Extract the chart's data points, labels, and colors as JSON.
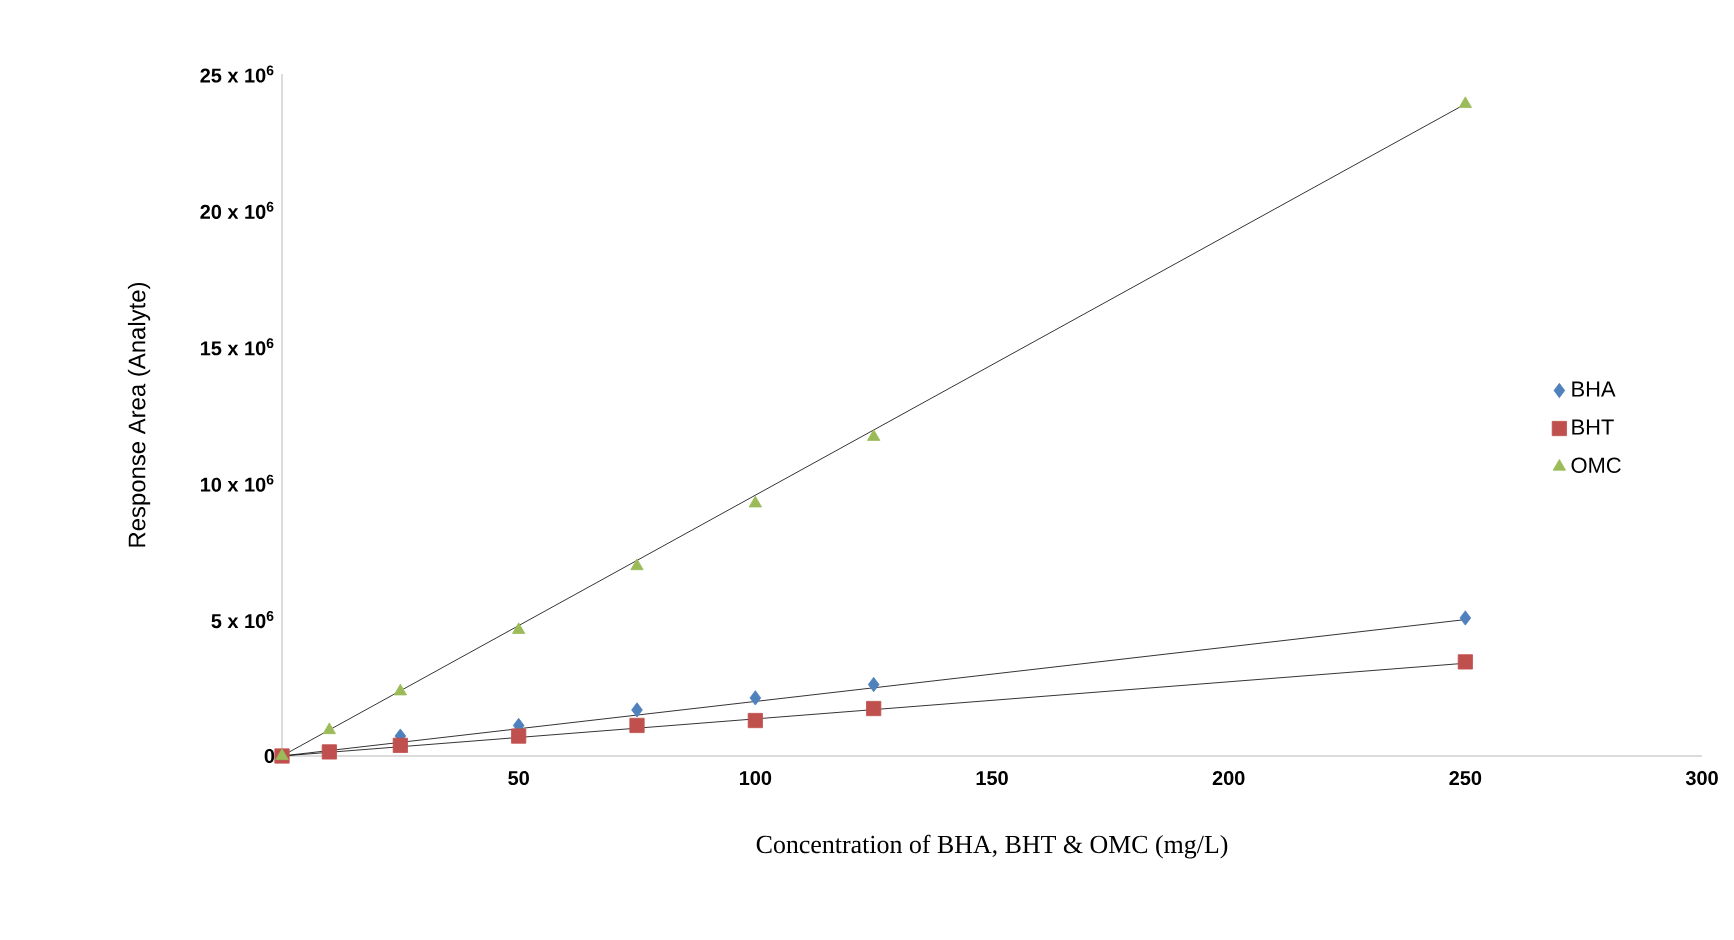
{
  "chart_data": {
    "type": "scatter",
    "xlabel": "Concentration of BHA, BHT & OMC (mg/L)",
    "ylabel": "Response Area (Analyte)",
    "xlim": [
      0,
      300
    ],
    "xticks": [
      {
        "value": 0,
        "label": null
      },
      50,
      100,
      150,
      200,
      250,
      300
    ],
    "ylim": [
      0,
      25000000
    ],
    "yticks": [
      {
        "value": 0,
        "label": "0"
      },
      {
        "value": 5000000,
        "label": "5 x 10$^{6}$"
      },
      {
        "value": 10000000,
        "label": "10 x 10$^{6}$"
      },
      {
        "value": 15000000,
        "label": "15 x 10$^{6}$"
      },
      {
        "value": 20000000,
        "label": "20 x 10$^{6}$"
      },
      {
        "value": 25000000,
        "label": "25 x 10$^{6}$"
      }
    ],
    "grid": false,
    "legend": "right",
    "series": [
      {
        "name": "BHA",
        "marker": "diamond",
        "color": "#4f81bd",
        "x": [
          25,
          50,
          75,
          100,
          125,
          250
        ],
        "values": [
          730000,
          1120000,
          1690000,
          2130000,
          2620000,
          5060000
        ]
      },
      {
        "name": "BHT",
        "marker": "square",
        "color": "#c0504d",
        "x": [
          0,
          10,
          25,
          50,
          75,
          100,
          125,
          250
        ],
        "values": [
          0,
          150000,
          390000,
          730000,
          1120000,
          1300000,
          1740000,
          3450000
        ]
      },
      {
        "name": "OMC",
        "marker": "triangle",
        "color": "#9bbb59",
        "x": [
          0,
          10,
          25,
          50,
          75,
          100,
          125,
          250
        ],
        "values": [
          0,
          950000,
          2370000,
          4620000,
          6960000,
          9260000,
          11700000,
          23900000
        ]
      },
      {
        "type": "line",
        "marker": "none",
        "line_style": "solid",
        "color": "#000000",
        "x": [
          0,
          250
        ],
        "values": [
          0,
          5000000
        ]
      },
      {
        "type": "line",
        "marker": "none",
        "line_style": "solid",
        "color": "#000000",
        "x": [
          0,
          250
        ],
        "values": [
          0,
          3400000
        ]
      },
      {
        "type": "line",
        "marker": "none",
        "line_style": "solid",
        "color": "#000000",
        "x": [
          0,
          250
        ],
        "values": [
          0,
          23900000
        ]
      }
    ]
  }
}
